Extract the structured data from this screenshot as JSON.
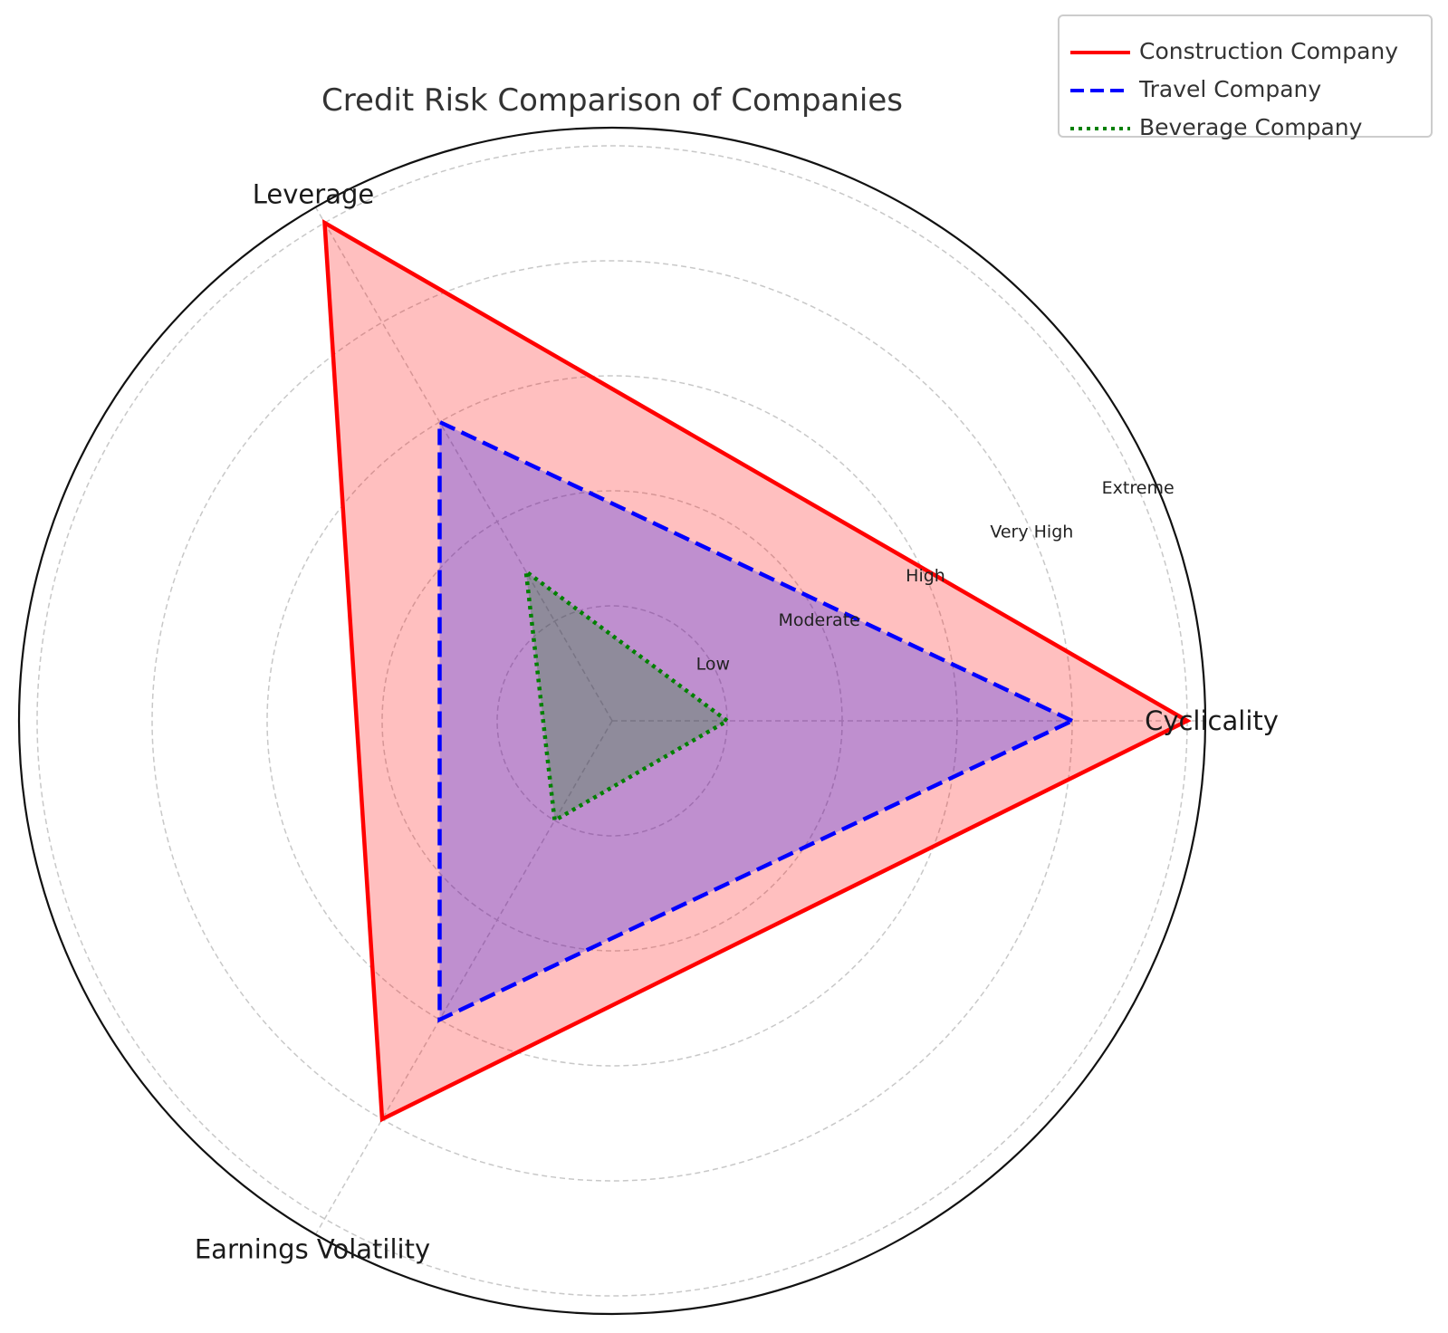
{
  "chart_data": {
    "type": "radar",
    "title": "Credit Risk Comparison of Companies",
    "axes": [
      "Cyclicality",
      "Leverage",
      "Earnings Volatility"
    ],
    "radial_tick_labels": [
      "Low",
      "Moderate",
      "High",
      "Very High",
      "Extreme"
    ],
    "rlim": [
      0,
      5
    ],
    "grid": true,
    "legend_position": "top-right",
    "series": [
      {
        "name": "Construction Company",
        "values": [
          5,
          5,
          4
        ],
        "color": "#ff0000",
        "fill": "#ff0000",
        "linestyle": "solid"
      },
      {
        "name": "Travel Company",
        "values": [
          4,
          3,
          3
        ],
        "color": "#0000ff",
        "fill": "#0000ff",
        "linestyle": "dashed"
      },
      {
        "name": "Beverage Company",
        "values": [
          1,
          1.5,
          1
        ],
        "color": "#008000",
        "fill": "#008000",
        "linestyle": "dotted"
      }
    ]
  }
}
